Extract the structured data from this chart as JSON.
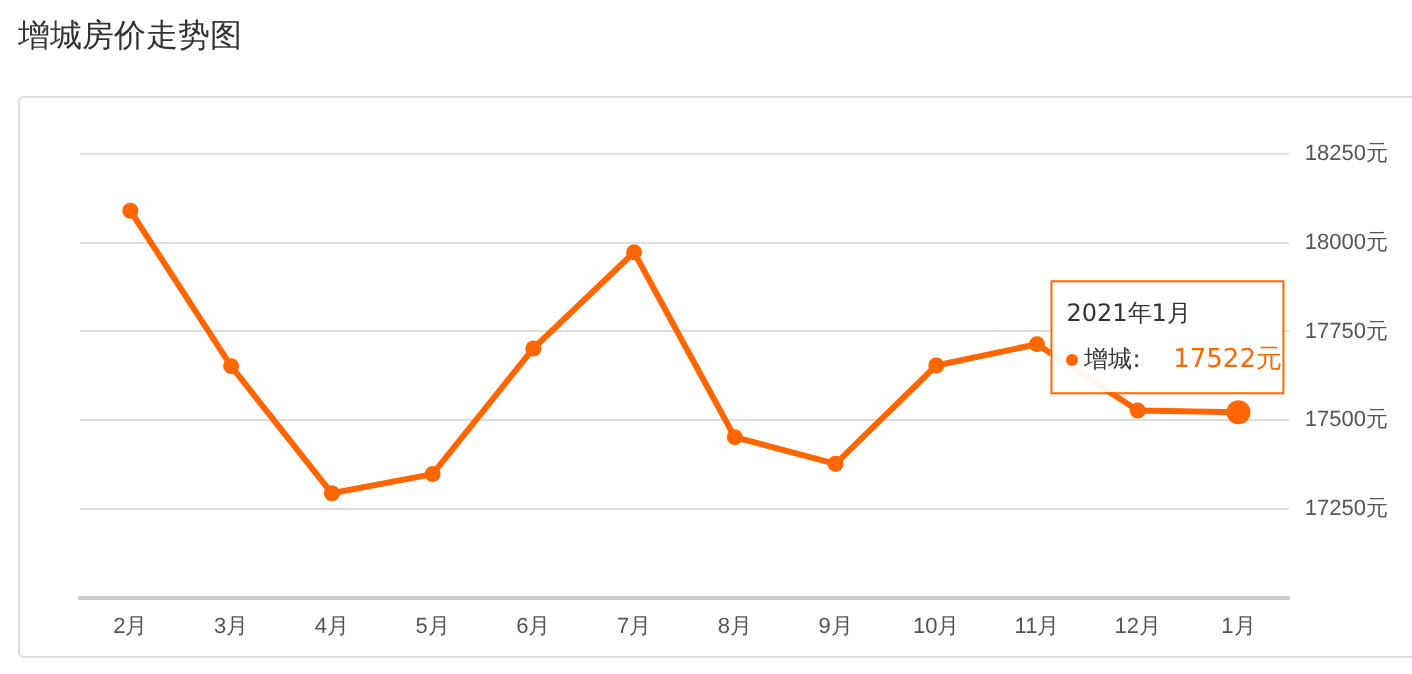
{
  "chart_data": {
    "type": "line",
    "title": "增城房价走势图",
    "categories": [
      "2月",
      "3月",
      "4月",
      "5月",
      "6月",
      "7月",
      "8月",
      "9月",
      "10月",
      "11月",
      "12月",
      "1月"
    ],
    "series": [
      {
        "color": "#ff6600",
        "values": [
          18090,
          17652,
          17294,
          17348,
          17702,
          17973,
          17452,
          17377,
          17654,
          17714,
          17527,
          17522
        ],
        "value_labels": [
          null,
          null,
          null,
          null,
          null,
          null,
          null,
          null,
          null,
          null,
          null,
          "17522元"
        ]
      }
    ],
    "ylim": [
      17000,
      18250
    ],
    "yticks": [
      {
        "value": 17250,
        "label": "17250元"
      },
      {
        "value": 17500,
        "label": "17500元"
      },
      {
        "value": 17750,
        "label": "17750元"
      },
      {
        "value": 18000,
        "label": "18000元"
      },
      {
        "value": 18250,
        "label": "18250元"
      }
    ],
    "annotations": [
      "2021年1月",
      "增城:"
    ],
    "grid": "y",
    "legend": false,
    "marker": "circle",
    "line_style": "solid"
  }
}
